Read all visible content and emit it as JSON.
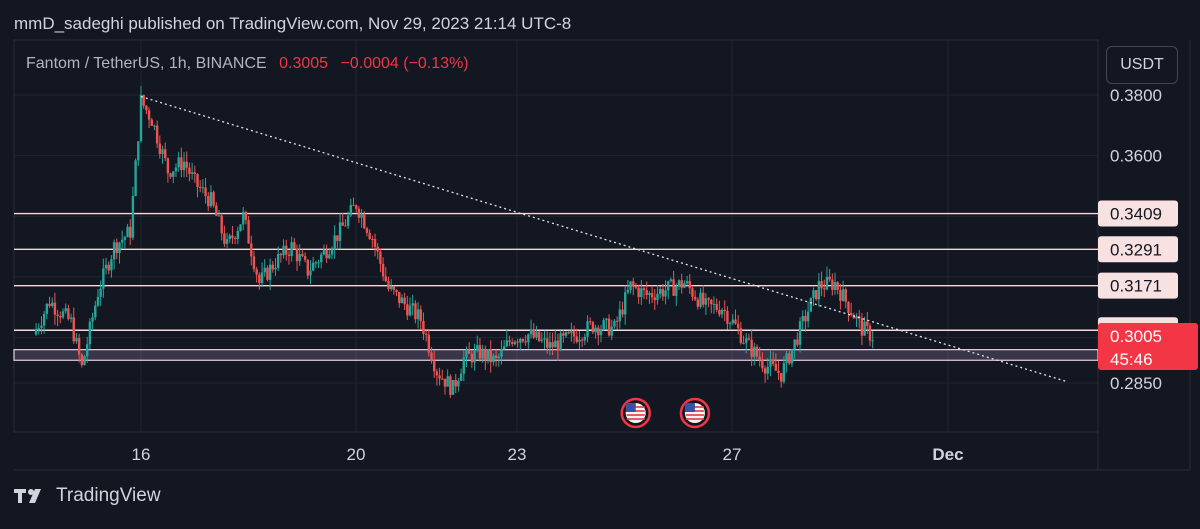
{
  "header": {
    "published_text": "mmD_sadeghi published on TradingView.com, Nov 29, 2023 21:14 UTC-8"
  },
  "legend": {
    "symbol": "Fantom / TetherUS, 1h, BINANCE",
    "last": "0.3005",
    "change": "−0.0004 (−0.13%)"
  },
  "currency_button": "USDT",
  "brand": {
    "name": "TradingView"
  },
  "colors": {
    "background": "#131722",
    "up": "#26a69a",
    "down": "#ef5350",
    "level_line": "#f7d7d7",
    "last_price": "#f23645",
    "zone_fill": "#c9a9d6"
  },
  "chart_data": {
    "type": "candlestick",
    "symbol": "FTM/USDT",
    "interval": "1h",
    "y_axis_ticks": [
      "0.3800",
      "0.3600",
      "0.2850"
    ],
    "x_axis_ticks": [
      "16",
      "20",
      "23",
      "27",
      "Dec"
    ],
    "ylim": [
      0.275,
      0.388
    ],
    "horizontal_levels": [
      {
        "label": "0.3409",
        "value": 0.3409
      },
      {
        "label": "0.3291",
        "value": 0.3291
      },
      {
        "label": "0.3171",
        "value": 0.3171
      },
      {
        "label": "0.3024",
        "value": 0.3024
      }
    ],
    "last_price": {
      "label": "0.3005",
      "value": 0.3005,
      "countdown": "45:46"
    },
    "support_zone": [
      0.2925,
      0.296
    ],
    "trendline": {
      "from": {
        "day": 16.0,
        "price": 0.3795
      },
      "to": {
        "day": 33.2,
        "price": 0.2855
      }
    },
    "events": [
      {
        "day": 30.4,
        "icon": "us-flag"
      },
      {
        "day": 31.5,
        "icon": "us-flag"
      }
    ],
    "price_path": [
      [
        14.0,
        0.301
      ],
      [
        14.3,
        0.312
      ],
      [
        14.7,
        0.305
      ],
      [
        14.9,
        0.29
      ],
      [
        15.2,
        0.315
      ],
      [
        15.5,
        0.33
      ],
      [
        15.8,
        0.335
      ],
      [
        16.0,
        0.378
      ],
      [
        16.2,
        0.372
      ],
      [
        16.5,
        0.355
      ],
      [
        16.8,
        0.358
      ],
      [
        17.0,
        0.351
      ],
      [
        17.3,
        0.345
      ],
      [
        17.6,
        0.33
      ],
      [
        17.9,
        0.34
      ],
      [
        18.2,
        0.318
      ],
      [
        18.5,
        0.325
      ],
      [
        18.8,
        0.33
      ],
      [
        19.1,
        0.322
      ],
      [
        19.4,
        0.328
      ],
      [
        19.7,
        0.335
      ],
      [
        20.0,
        0.344
      ],
      [
        20.3,
        0.333
      ],
      [
        20.6,
        0.316
      ],
      [
        20.9,
        0.311
      ],
      [
        21.2,
        0.306
      ],
      [
        21.5,
        0.289
      ],
      [
        21.8,
        0.283
      ],
      [
        22.0,
        0.293
      ],
      [
        22.3,
        0.295
      ],
      [
        22.6,
        0.292
      ],
      [
        22.9,
        0.3
      ],
      [
        23.2,
        0.301
      ],
      [
        23.6,
        0.297
      ],
      [
        24.0,
        0.3
      ],
      [
        24.4,
        0.304
      ],
      [
        24.8,
        0.303
      ],
      [
        25.1,
        0.317
      ],
      [
        25.4,
        0.314
      ],
      [
        25.8,
        0.316
      ],
      [
        26.1,
        0.318
      ],
      [
        26.5,
        0.31
      ],
      [
        26.8,
        0.31
      ],
      [
        27.0,
        0.305
      ],
      [
        27.3,
        0.297
      ],
      [
        27.6,
        0.291
      ],
      [
        27.9,
        0.288
      ],
      [
        28.1,
        0.296
      ],
      [
        28.4,
        0.309
      ],
      [
        28.6,
        0.317
      ],
      [
        28.9,
        0.318
      ],
      [
        29.2,
        0.309
      ],
      [
        29.4,
        0.303
      ],
      [
        29.6,
        0.3005
      ]
    ]
  }
}
